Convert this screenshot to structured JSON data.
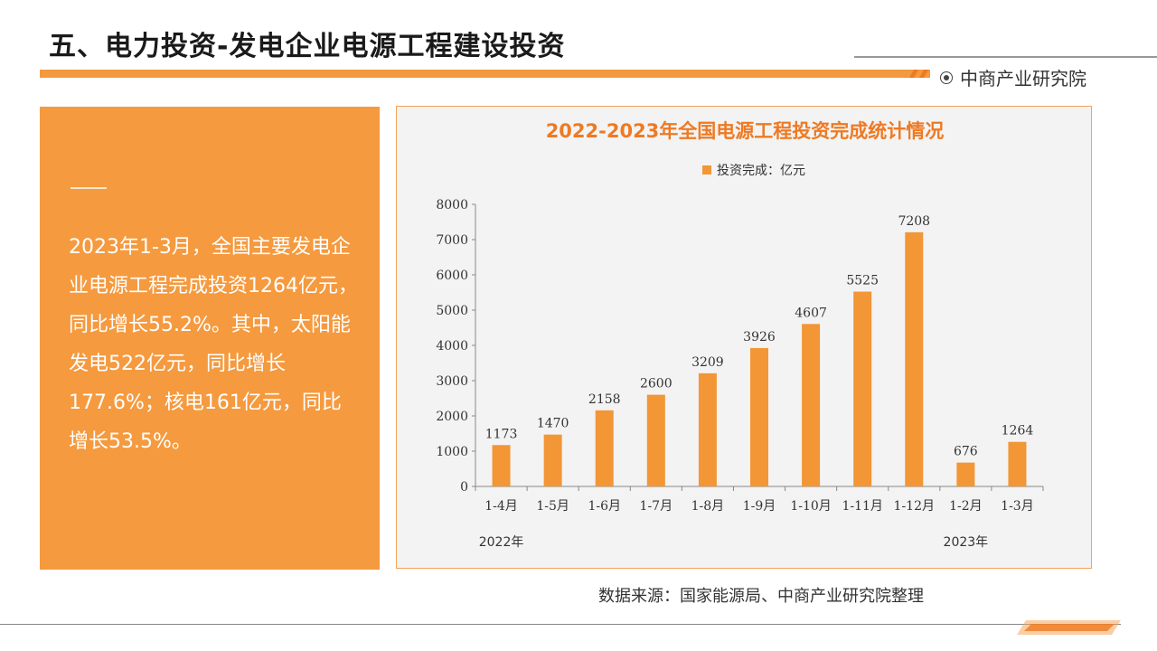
{
  "header": {
    "title": "五、电力投资-发电企业电源工程建设投资",
    "brand": "中商产业研究院"
  },
  "summary": {
    "text": "2023年1-3月，全国主要发电企业电源工程完成投资1264亿元，同比增长55.2%。其中，太阳能发电522亿元，同比增长177.6%；核电161亿元，同比增长53.5%。"
  },
  "footer": {
    "source": "数据来源：国家能源局、中商产业研究院整理"
  },
  "colors": {
    "accent": "#f39a3e",
    "bar": "#f29636",
    "chart_title": "#ee7a22"
  },
  "chart_data": {
    "type": "bar",
    "title": "2022-2023年全国电源工程投资完成统计情况",
    "categories": [
      "1-4月",
      "1-5月",
      "1-6月",
      "1-7月",
      "1-8月",
      "1-9月",
      "1-10月",
      "1-11月",
      "1-12月",
      "1-2月",
      "1-3月"
    ],
    "series": [
      {
        "name": "投资完成：亿元",
        "values": [
          1173,
          1470,
          2158,
          2600,
          3209,
          3926,
          4607,
          5525,
          7208,
          676,
          1264
        ]
      }
    ],
    "year_labels": [
      {
        "text": "2022年",
        "under_category": "1-4月"
      },
      {
        "text": "2023年",
        "under_category": "1-2月"
      }
    ],
    "ylim": [
      0,
      8000
    ],
    "yticks": [
      0,
      1000,
      2000,
      3000,
      4000,
      5000,
      6000,
      7000,
      8000
    ],
    "xlabel": "",
    "ylabel": "",
    "legend_position": "top-center",
    "grid": false,
    "data_labels": true
  }
}
